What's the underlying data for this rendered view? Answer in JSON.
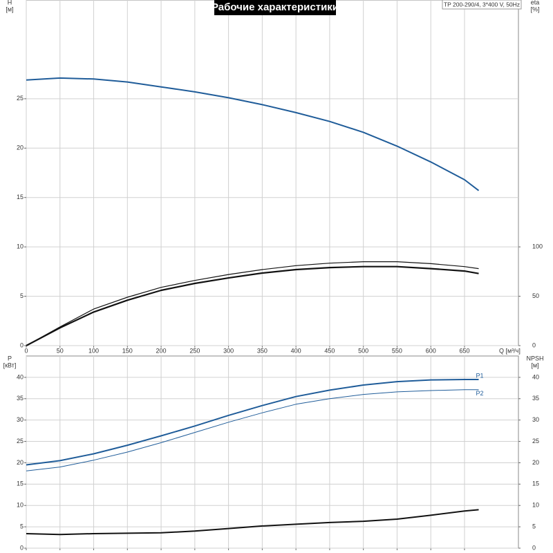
{
  "title": "Рабочие характеристики",
  "model": "TP 200-290/4, 3*400 V, 50Hz",
  "chart_data": [
    {
      "type": "line",
      "y_label": "H",
      "y_unit": "[м]",
      "y2_label": "eta",
      "y2_unit": "[%]",
      "x_label": "Q [м³/ч]",
      "xlim": [
        0,
        730
      ],
      "xticks": [
        0,
        50,
        100,
        150,
        200,
        250,
        300,
        350,
        400,
        450,
        500,
        550,
        600,
        650
      ],
      "xtick_labels": true,
      "ylim": [
        0,
        35
      ],
      "yticks": [
        0,
        5,
        10,
        15,
        20,
        25
      ],
      "y2lim": [
        0,
        350
      ],
      "y2ticks": [
        0,
        50,
        100
      ],
      "grid": true,
      "series": [
        {
          "color": "#1f5c99",
          "linewidth": 2,
          "x": [
            0,
            50,
            100,
            150,
            200,
            250,
            300,
            350,
            400,
            450,
            500,
            550,
            600,
            650,
            671
          ],
          "values": [
            26.9,
            27.1,
            27.0,
            26.7,
            26.2,
            25.7,
            25.1,
            24.4,
            23.6,
            22.7,
            21.6,
            20.2,
            18.6,
            16.8,
            15.7
          ]
        },
        {
          "color": "#111111",
          "linewidth": 1.2,
          "axis": "y2",
          "x": [
            0,
            50,
            100,
            150,
            200,
            250,
            300,
            350,
            400,
            450,
            500,
            550,
            600,
            650,
            671
          ],
          "values": [
            0,
            19,
            37,
            49,
            59,
            66,
            72,
            77,
            81,
            83.5,
            85,
            85,
            83,
            80,
            78
          ]
        },
        {
          "color": "#111111",
          "linewidth": 2.2,
          "axis": "y2",
          "x": [
            0,
            50,
            100,
            150,
            200,
            250,
            300,
            350,
            400,
            450,
            500,
            550,
            600,
            650,
            671
          ],
          "values": [
            0,
            18,
            34,
            46,
            56,
            63,
            68.5,
            73.5,
            77,
            79,
            80,
            80,
            78,
            75.5,
            73
          ]
        }
      ]
    },
    {
      "type": "line",
      "y_label": "P",
      "y_unit": "[кВт]",
      "y2_label": "NPSH",
      "y2_unit": "[м]",
      "xlim": [
        0,
        730
      ],
      "xticks": [
        0,
        50,
        100,
        150,
        200,
        250,
        300,
        350,
        400,
        450,
        500,
        550,
        600,
        650
      ],
      "xtick_labels": false,
      "ylim": [
        0,
        45
      ],
      "yticks": [
        0,
        5,
        10,
        15,
        20,
        25,
        30,
        35,
        40
      ],
      "y2lim": [
        0,
        45
      ],
      "y2ticks": [
        0,
        5,
        10,
        15,
        20,
        25,
        30,
        35,
        40
      ],
      "grid": true,
      "series": [
        {
          "name": "P1",
          "color": "#1f5c99",
          "linewidth": 2,
          "x": [
            0,
            50,
            100,
            150,
            200,
            250,
            300,
            350,
            400,
            450,
            500,
            550,
            600,
            650,
            671
          ],
          "values": [
            19.5,
            20.5,
            22.1,
            24.1,
            26.3,
            28.6,
            31.1,
            33.4,
            35.5,
            37.0,
            38.2,
            39.0,
            39.4,
            39.5,
            39.5
          ]
        },
        {
          "name": "P2",
          "color": "#1f5c99",
          "linewidth": 1,
          "x": [
            0,
            50,
            100,
            150,
            200,
            250,
            300,
            350,
            400,
            450,
            500,
            550,
            600,
            650,
            671
          ],
          "values": [
            18.1,
            19.0,
            20.6,
            22.5,
            24.7,
            27.1,
            29.5,
            31.7,
            33.7,
            35.0,
            36.0,
            36.6,
            36.9,
            37.1,
            37.1
          ]
        },
        {
          "color": "#111111",
          "linewidth": 2,
          "axis": "y2",
          "x": [
            0,
            50,
            100,
            150,
            200,
            250,
            300,
            350,
            400,
            450,
            500,
            550,
            600,
            650,
            671
          ],
          "values": [
            3.4,
            3.2,
            3.4,
            3.5,
            3.6,
            4.0,
            4.6,
            5.2,
            5.6,
            6.0,
            6.3,
            6.8,
            7.7,
            8.7,
            9.0
          ]
        }
      ]
    }
  ]
}
